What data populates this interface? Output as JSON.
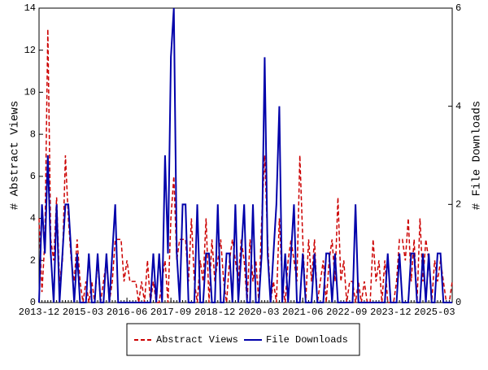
{
  "chart_data": {
    "type": "line",
    "y_label": "# Abstract Views",
    "y2_label": "# File Downloads",
    "x": [
      "2013-12",
      "2014-01",
      "2014-02",
      "2014-03",
      "2014-04",
      "2014-05",
      "2014-06",
      "2014-07",
      "2014-08",
      "2014-09",
      "2014-10",
      "2014-11",
      "2014-12",
      "2015-01",
      "2015-02",
      "2015-03",
      "2015-04",
      "2015-05",
      "2015-06",
      "2015-07",
      "2015-08",
      "2015-09",
      "2015-10",
      "2015-11",
      "2015-12",
      "2016-01",
      "2016-02",
      "2016-03",
      "2016-04",
      "2016-05",
      "2016-06",
      "2016-07",
      "2016-08",
      "2016-09",
      "2016-10",
      "2016-11",
      "2016-12",
      "2017-01",
      "2017-02",
      "2017-03",
      "2017-04",
      "2017-05",
      "2017-06",
      "2017-07",
      "2017-08",
      "2017-09",
      "2017-10",
      "2017-11",
      "2017-12",
      "2018-01",
      "2018-02",
      "2018-03",
      "2018-04",
      "2018-05",
      "2018-06",
      "2018-07",
      "2018-08",
      "2018-09",
      "2018-10",
      "2018-11",
      "2018-12",
      "2019-01",
      "2019-02",
      "2019-03",
      "2019-04",
      "2019-05",
      "2019-06",
      "2019-07",
      "2019-08",
      "2019-09",
      "2019-10",
      "2019-11",
      "2019-12",
      "2020-01",
      "2020-02",
      "2020-03",
      "2020-04",
      "2020-05",
      "2020-06",
      "2020-07",
      "2020-08",
      "2020-09",
      "2020-10",
      "2020-11",
      "2020-12",
      "2021-01",
      "2021-02",
      "2021-03",
      "2021-04",
      "2021-05",
      "2021-06",
      "2021-07",
      "2021-08",
      "2021-09",
      "2021-10",
      "2021-11",
      "2021-12",
      "2022-01",
      "2022-02",
      "2022-03",
      "2022-04",
      "2022-05",
      "2022-06",
      "2022-07",
      "2022-08",
      "2022-09",
      "2022-10",
      "2022-11",
      "2022-12",
      "2023-01",
      "2023-02",
      "2023-03",
      "2023-04",
      "2023-05",
      "2023-06",
      "2023-07",
      "2023-08",
      "2023-09",
      "2023-10",
      "2023-11",
      "2023-12",
      "2024-01",
      "2024-02",
      "2024-03",
      "2024-04",
      "2024-05",
      "2024-06",
      "2024-07",
      "2024-08",
      "2024-09",
      "2024-10",
      "2024-11",
      "2024-12",
      "2025-01",
      "2025-02",
      "2025-03",
      "2025-04",
      "2025-05",
      "2025-06",
      "2025-07",
      "2025-08",
      "2025-09"
    ],
    "xticks": [
      "2013-12",
      "2015-03",
      "2016-06",
      "2017-09",
      "2018-12",
      "2020-03",
      "2021-06",
      "2022-09",
      "2023-12",
      "2025-03"
    ],
    "ylim": [
      0,
      14
    ],
    "yticks": [
      0,
      2,
      4,
      6,
      8,
      10,
      12,
      14
    ],
    "y2lim": [
      0,
      6
    ],
    "y2ticks": [
      0,
      2,
      4,
      6
    ],
    "legend": "bottom",
    "series": [
      {
        "name": "Abstract Views",
        "color": "#cc0000",
        "style": "dashed",
        "values": [
          4,
          0.5,
          3,
          13,
          3,
          2,
          5,
          1,
          2,
          7,
          4,
          2,
          1,
          3,
          1,
          0,
          1,
          0,
          1,
          0,
          2,
          0,
          1,
          2,
          0,
          1,
          3,
          3,
          3,
          1,
          2,
          1,
          1,
          1,
          0,
          1,
          0,
          2,
          0,
          1,
          0,
          0,
          1,
          2,
          0,
          4,
          6,
          2,
          3,
          3,
          3,
          1,
          4,
          1,
          0,
          2,
          1,
          4,
          0,
          3,
          1,
          2,
          3,
          1,
          0,
          2,
          3,
          2,
          1,
          3,
          2,
          0,
          3,
          1,
          2,
          0,
          4,
          7,
          3,
          0,
          1,
          0,
          4,
          1,
          0,
          2,
          3,
          2,
          1,
          7,
          3,
          0,
          3,
          1,
          3,
          0,
          1,
          2,
          0,
          2,
          3,
          1,
          5,
          1,
          2,
          0,
          1,
          1,
          0,
          1,
          0,
          1,
          0,
          0,
          3,
          1,
          2,
          0,
          2,
          0,
          0,
          0,
          1,
          3,
          3,
          2,
          4,
          1,
          3,
          0,
          4,
          1,
          3,
          2,
          0,
          2,
          1,
          2,
          1,
          0,
          0,
          1
        ]
      },
      {
        "name": "File Downloads",
        "color": "#0000aa",
        "style": "solid",
        "axis": "y2",
        "values": [
          0,
          2,
          1,
          3,
          1,
          0,
          2,
          0,
          1,
          2,
          2,
          1,
          0,
          1,
          0,
          0,
          0,
          1,
          0,
          0,
          1,
          0,
          0,
          1,
          0,
          1,
          2,
          0,
          0,
          0,
          0,
          0,
          0,
          0,
          0,
          0,
          0,
          0,
          0,
          1,
          0,
          1,
          0,
          3,
          1,
          5,
          6,
          1,
          0,
          2,
          2,
          0,
          0,
          0,
          2,
          0,
          0,
          1,
          1,
          0,
          0,
          2,
          0,
          0,
          1,
          1,
          0,
          2,
          0,
          1,
          2,
          0,
          0,
          2,
          0,
          0,
          1,
          5,
          1,
          0,
          1,
          2,
          4,
          0,
          1,
          0,
          1,
          2,
          0,
          0,
          1,
          0,
          0,
          0,
          1,
          0,
          0,
          0,
          1,
          1,
          0,
          1,
          0,
          0,
          0,
          0,
          0,
          0,
          2,
          0,
          0,
          0,
          0,
          0,
          0,
          0,
          0,
          0,
          0,
          1,
          0,
          0,
          0,
          1,
          0,
          0,
          0,
          1,
          1,
          0,
          0,
          1,
          0,
          1,
          0,
          0,
          1,
          1,
          0,
          0,
          0,
          0
        ]
      }
    ]
  }
}
